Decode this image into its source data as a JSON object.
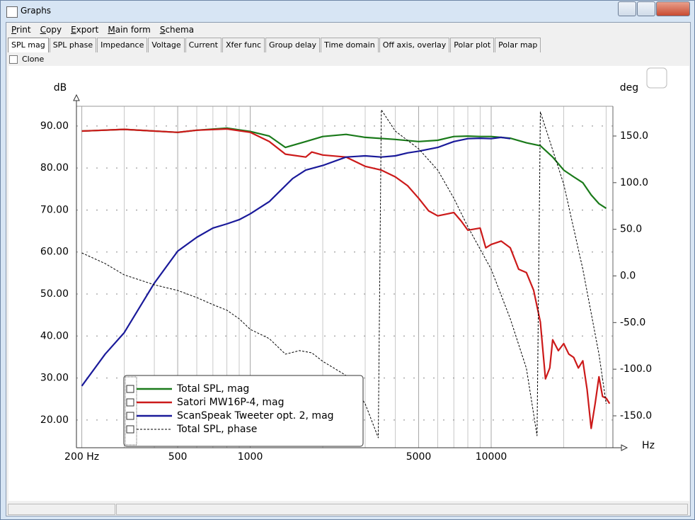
{
  "window": {
    "title": "Graphs"
  },
  "menu": [
    "Print",
    "Copy",
    "Export",
    "Main form",
    "Schema"
  ],
  "tabs": [
    "SPL mag",
    "SPL phase",
    "Impedance",
    "Voltage",
    "Current",
    "Xfer func",
    "Group delay",
    "Time domain",
    "Off axis, overlay",
    "Polar plot",
    "Polar map"
  ],
  "clone_label": "Clone",
  "chart_data": {
    "type": "line",
    "xlabel": "Hz",
    "ylabel": "dB",
    "y2label": "deg",
    "xscale": "log",
    "xlim": [
      190,
      32000
    ],
    "xticks": [
      {
        "value": 200,
        "label": "200 Hz"
      },
      500,
      1000,
      5000,
      10000
    ],
    "xminor": [
      300,
      400,
      600,
      700,
      800,
      900,
      2000,
      3000,
      4000,
      6000,
      7000,
      8000,
      9000,
      20000,
      30000
    ],
    "ylim": [
      13.4,
      94.7
    ],
    "yticks": [
      {
        "value": 90,
        "label": "90.00"
      },
      {
        "value": 80,
        "label": "80.00"
      },
      {
        "value": 70,
        "label": "70.00"
      },
      {
        "value": 60,
        "label": "60.00"
      },
      {
        "value": 50,
        "label": "50.00"
      },
      {
        "value": 40,
        "label": "40.00"
      },
      {
        "value": 30,
        "label": "30.00"
      },
      {
        "value": 20,
        "label": "20.00"
      }
    ],
    "y2lim": [
      -184.2,
      181.9
    ],
    "y2ticks": [
      {
        "value": 150,
        "label": "150.0"
      },
      {
        "value": 100,
        "label": "100.0"
      },
      {
        "value": 50,
        "label": "50.0"
      },
      {
        "value": 0,
        "label": "0.0"
      },
      {
        "value": -50,
        "label": "-50.0"
      },
      {
        "value": -100,
        "label": "-100.0"
      },
      {
        "value": -150,
        "label": "-150.0"
      }
    ],
    "grid": true,
    "legend": "lower left",
    "series": [
      {
        "name": "Total SPL, mag",
        "color": "#1a7a1a",
        "style": "solid",
        "x": [
          200,
          300,
          500,
          600,
          800,
          1000,
          1200,
          1400,
          1700,
          2000,
          2500,
          3000,
          4000,
          5000,
          6000,
          7000,
          8000,
          9000,
          10000,
          12000,
          14000,
          16000,
          18000,
          20000,
          22000,
          24000,
          26000,
          28000,
          30000
        ],
        "values": [
          88.8,
          89.2,
          88.5,
          89.0,
          89.5,
          88.7,
          87.6,
          84.9,
          86.3,
          87.5,
          88.0,
          87.3,
          86.8,
          86.3,
          86.6,
          87.5,
          87.6,
          87.5,
          87.5,
          87.1,
          86.0,
          85.3,
          82.6,
          79.5,
          77.9,
          76.5,
          73.6,
          71.5,
          70.4
        ]
      },
      {
        "name": "Satori MW16P-4, mag",
        "color": "#cc1a1a",
        "style": "solid",
        "x": [
          200,
          300,
          500,
          600,
          800,
          1000,
          1200,
          1400,
          1700,
          1800,
          2000,
          2500,
          3000,
          3500,
          4000,
          4500,
          5000,
          5500,
          6000,
          7000,
          7500,
          8000,
          9000,
          9500,
          10000,
          11000,
          12000,
          13000,
          14000,
          15000,
          16000,
          16800,
          17500,
          18000,
          19000,
          20000,
          21000,
          22000,
          23000,
          24000,
          25000,
          26000,
          27000,
          28000,
          29000,
          30000,
          31000
        ],
        "values": [
          88.8,
          89.2,
          88.5,
          89.0,
          89.3,
          88.5,
          86.3,
          83.3,
          82.6,
          83.8,
          83.1,
          82.6,
          80.4,
          79.5,
          77.9,
          75.8,
          72.8,
          69.8,
          68.6,
          69.4,
          67.4,
          65.2,
          65.7,
          61.0,
          61.8,
          62.6,
          61.0,
          55.9,
          55.1,
          50.9,
          43.3,
          29.8,
          32.4,
          39.1,
          36.5,
          38.2,
          35.7,
          34.9,
          32.4,
          34.1,
          27.3,
          18.0,
          23.9,
          30.3,
          25.6,
          25.2,
          23.9
        ]
      },
      {
        "name": "ScanSpeak Tweeter opt. 2, mag",
        "color": "#1a1a9a",
        "style": "solid",
        "x": [
          200,
          250,
          300,
          400,
          500,
          600,
          700,
          800,
          900,
          1000,
          1200,
          1500,
          1700,
          2000,
          2500,
          3000,
          3500,
          4000,
          4500,
          5000,
          6000,
          7000,
          8000,
          9000,
          10000,
          11000,
          12000
        ],
        "values": [
          28.1,
          35.7,
          40.8,
          52.6,
          60.2,
          63.5,
          65.7,
          66.7,
          67.7,
          69.1,
          72.0,
          77.5,
          79.5,
          80.6,
          82.6,
          82.9,
          82.6,
          82.9,
          83.6,
          84.0,
          84.9,
          86.3,
          87.0,
          87.1,
          87.0,
          87.3,
          87.0
        ]
      },
      {
        "name": "Total SPL, phase",
        "color": "#000000",
        "style": "dashed",
        "axis": "y2",
        "x": [
          200,
          250,
          300,
          400,
          500,
          600,
          700,
          800,
          900,
          1000,
          1200,
          1400,
          1600,
          1800,
          2000,
          2500,
          3000,
          3400,
          3500,
          4000,
          5000,
          6000,
          7000,
          8000,
          10000,
          12000,
          14000,
          15500,
          16000,
          20000,
          24000,
          28000,
          30000
        ],
        "values": [
          24.7,
          13.3,
          1.1,
          -9.5,
          -15.6,
          -23.2,
          -30.8,
          -36.8,
          -46.0,
          -57.3,
          -67.2,
          -83.9,
          -80.1,
          -82.4,
          -91.5,
          -106.7,
          -137.1,
          -173.5,
          178.1,
          155.3,
          136.3,
          113.5,
          83.2,
          52.8,
          7.2,
          -46.0,
          -99.1,
          -171.3,
          175.8,
          98.4,
          7.2,
          -83.9,
          -137.1
        ]
      }
    ]
  }
}
